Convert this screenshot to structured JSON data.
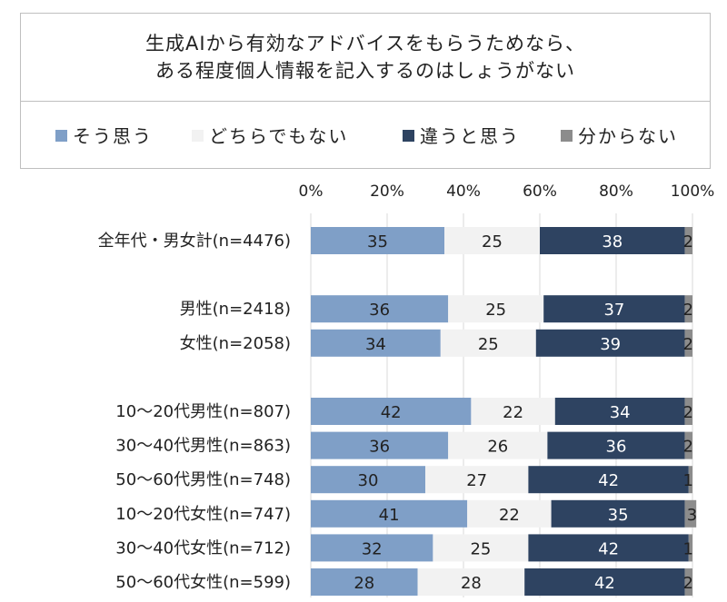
{
  "title": {
    "line1": "生成AIから有効なアドバイスをもらうためなら、",
    "line2": "ある程度個人情報を記入するのはしょうがない"
  },
  "colors": {
    "agree": "#7f9fc7",
    "neutral": "#f2f2f2",
    "disagree": "#2e4361",
    "unknown": "#8c8c8c",
    "grid": "#d9d9d9"
  },
  "chart_data": {
    "type": "bar",
    "orientation": "horizontal",
    "stacked": true,
    "percent_axis": true,
    "xlim": [
      0,
      100
    ],
    "xticks": [
      "0%",
      "20%",
      "40%",
      "60%",
      "80%",
      "100%"
    ],
    "legend_position": "top",
    "categories": [
      "全年代・男女計(n=4476)",
      "",
      "男性(n=2418)",
      "女性(n=2058)",
      "",
      "10～20代男性(n=807)",
      "30～40代男性(n=863)",
      "50～60代男性(n=748)",
      "10～20代女性(n=747)",
      "30～40代女性(n=712)",
      "50～60代女性(n=599)"
    ],
    "series": [
      {
        "name": "そう思う",
        "values": [
          35,
          null,
          36,
          34,
          null,
          42,
          36,
          30,
          41,
          32,
          28
        ]
      },
      {
        "name": "どちらでもない",
        "values": [
          25,
          null,
          25,
          25,
          null,
          22,
          26,
          27,
          22,
          25,
          28
        ]
      },
      {
        "name": "違うと思う",
        "values": [
          38,
          null,
          37,
          39,
          null,
          34,
          36,
          42,
          35,
          42,
          42
        ]
      },
      {
        "name": "分からない",
        "values": [
          2,
          null,
          2,
          2,
          null,
          2,
          2,
          1,
          3,
          1,
          2
        ]
      }
    ]
  }
}
